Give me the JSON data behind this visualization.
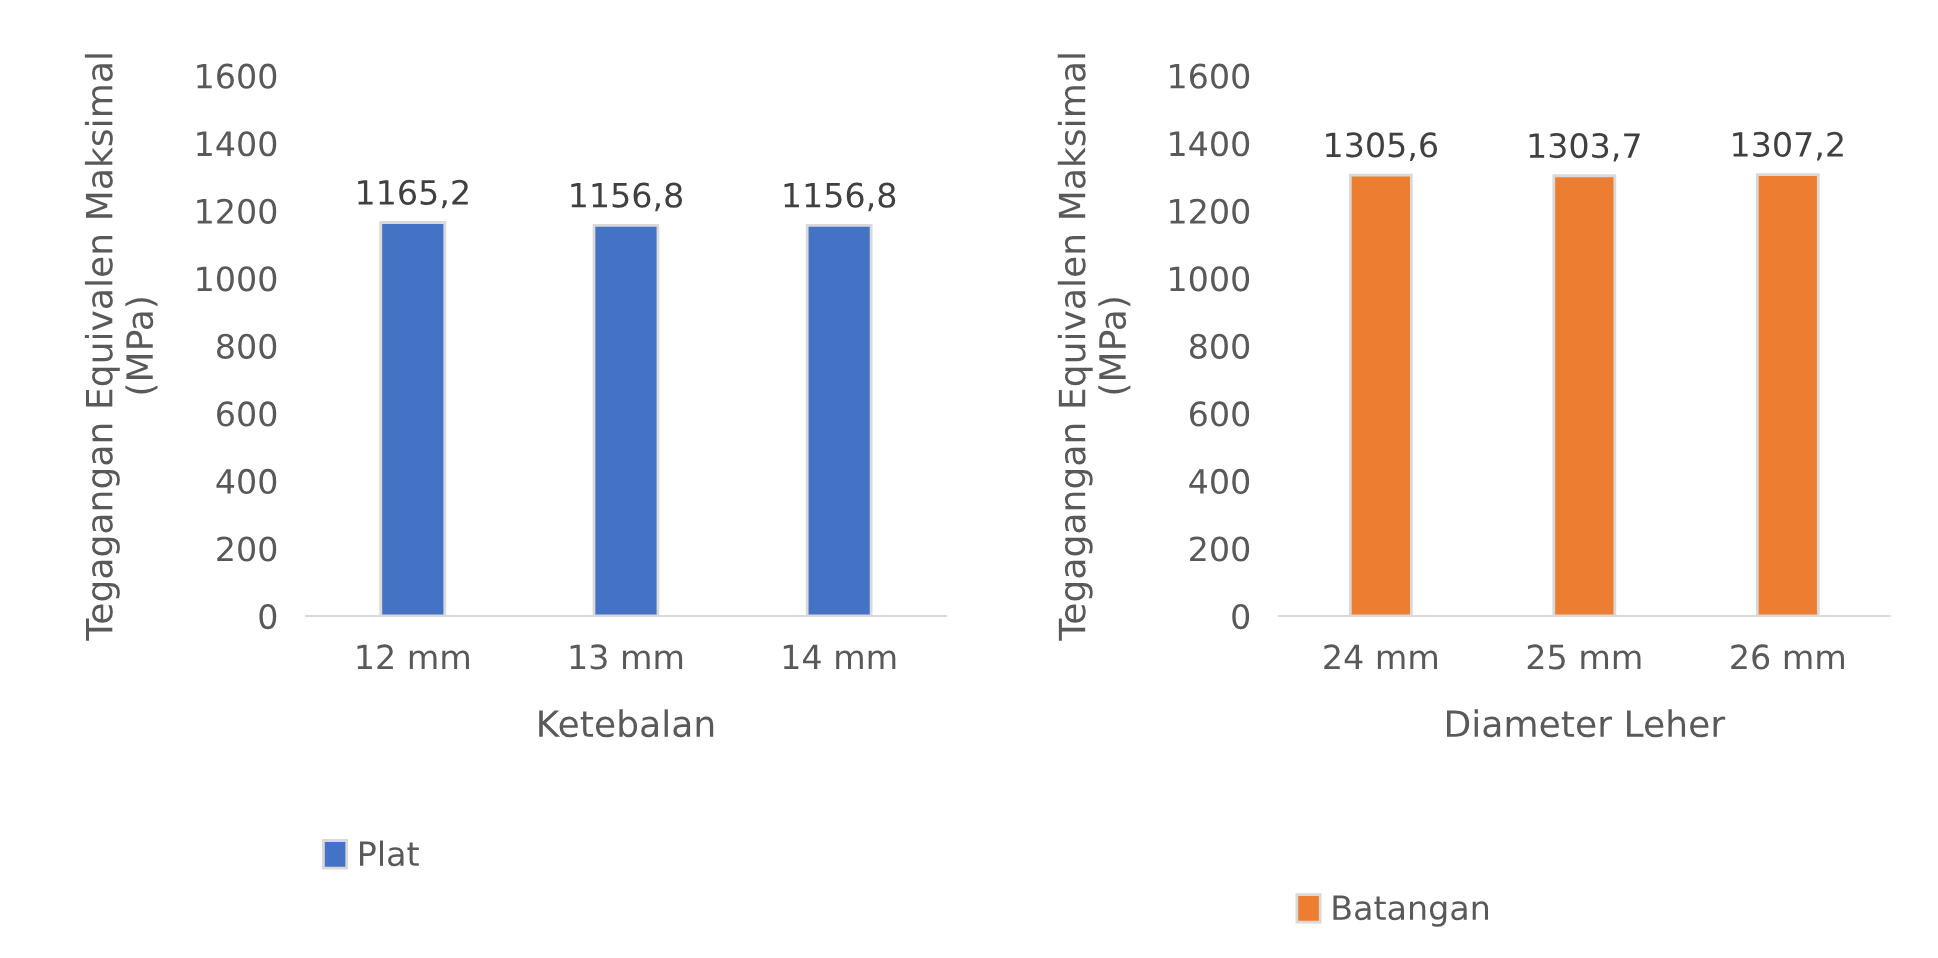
{
  "chart_data": [
    {
      "type": "bar",
      "xlabel": "Ketebalan",
      "ylabel": "Tegagangan Equivalen Maksimal\n(MPa)",
      "categories": [
        "12 mm",
        "13 mm",
        "14 mm"
      ],
      "series": [
        {
          "name": "Plat",
          "color": "#4472c4",
          "values": [
            1165.2,
            1156.8,
            1156.8
          ],
          "value_labels": [
            "1165,2",
            "1156,8",
            "1156,8"
          ]
        }
      ],
      "ylim": [
        0,
        1600
      ],
      "yticks": [
        0,
        200,
        400,
        600,
        800,
        1000,
        1200,
        1400,
        1600
      ],
      "grid": false,
      "legend": "bottom"
    },
    {
      "type": "bar",
      "xlabel": "Diameter Leher",
      "ylabel": "Tegagangan Equivalen Maksimal\n(MPa)",
      "categories": [
        "24 mm",
        "25 mm",
        "26 mm"
      ],
      "series": [
        {
          "name": "Batangan",
          "color": "#ed7d31",
          "values": [
            1305.6,
            1303.7,
            1307.2
          ],
          "value_labels": [
            "1305,6",
            "1303,7",
            "1307,2"
          ]
        }
      ],
      "ylim": [
        0,
        1600
      ],
      "yticks": [
        0,
        200,
        400,
        600,
        800,
        1000,
        1200,
        1400,
        1600
      ],
      "grid": false,
      "legend": "bottom"
    }
  ]
}
